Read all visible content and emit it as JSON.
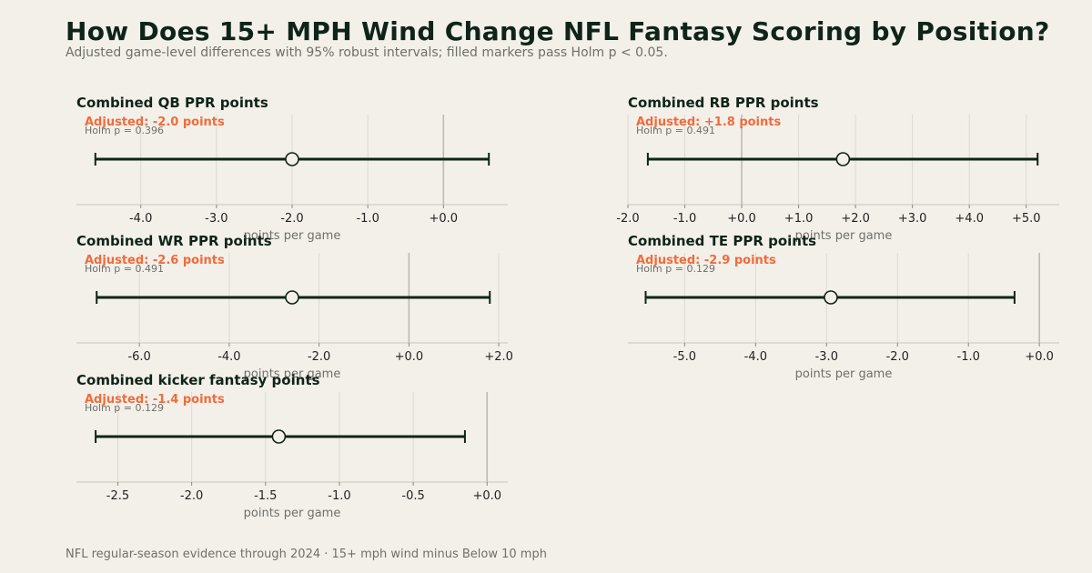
{
  "header": {
    "title": "How Does 15+ MPH Wind Change NFL Fantasy Scoring by Position?",
    "subtitle": "Adjusted game-level differences with 95% robust intervals; filled markers pass Holm p < 0.05."
  },
  "footer": {
    "text": "NFL regular-season evidence through 2024 · 15+ mph wind minus Below 10 mph"
  },
  "colors": {
    "line": "#0f2418",
    "marker_fill": "#f3f0ea",
    "annotation": "#f26b3a",
    "grid": "#dcd9d3",
    "zero_line": "#bdbab4"
  },
  "chart_data": [
    {
      "type": "scatter",
      "title": "Combined QB PPR points",
      "adjusted_label": "Adjusted: -2.0 points",
      "holm_label": "Holm p = 0.396",
      "estimate": -2.0,
      "ci": [
        -4.6,
        0.6
      ],
      "significant": false,
      "xlim": [
        -4.85,
        0.85
      ],
      "ticks": [
        -4.0,
        -3.0,
        -2.0,
        -1.0,
        0.0
      ],
      "tick_labels": [
        "-4.0",
        "-3.0",
        "-2.0",
        "-1.0",
        "+0.0"
      ],
      "xlabel": "points per game"
    },
    {
      "type": "scatter",
      "title": "Combined RB PPR points",
      "adjusted_label": "Adjusted: +1.8 points",
      "holm_label": "Holm p = 0.491",
      "estimate": 1.78,
      "ci": [
        -1.65,
        5.2
      ],
      "significant": false,
      "xlim": [
        -2.0,
        5.58
      ],
      "ticks": [
        -2.0,
        -1.0,
        0.0,
        1.0,
        2.0,
        3.0,
        4.0,
        5.0
      ],
      "tick_labels": [
        "-2.0",
        "-1.0",
        "+0.0",
        "+1.0",
        "+2.0",
        "+3.0",
        "+4.0",
        "+5.0"
      ],
      "xlabel": "points per game"
    },
    {
      "type": "scatter",
      "title": "Combined WR PPR points",
      "adjusted_label": "Adjusted: -2.6 points",
      "holm_label": "Holm p = 0.491",
      "estimate": -2.6,
      "ci": [
        -6.95,
        1.8
      ],
      "significant": false,
      "xlim": [
        -7.4,
        2.2
      ],
      "ticks": [
        -6.0,
        -4.0,
        -2.0,
        0.0,
        2.0
      ],
      "tick_labels": [
        "-6.0",
        "-4.0",
        "-2.0",
        "+0.0",
        "+2.0"
      ],
      "xlabel": "points per game"
    },
    {
      "type": "scatter",
      "title": "Combined TE PPR points",
      "adjusted_label": "Adjusted: -2.9 points",
      "holm_label": "Holm p = 0.129",
      "estimate": -2.94,
      "ci": [
        -5.55,
        -0.35
      ],
      "significant": false,
      "xlim": [
        -5.8,
        0.28
      ],
      "ticks": [
        -5.0,
        -4.0,
        -3.0,
        -2.0,
        -1.0,
        0.0
      ],
      "tick_labels": [
        "-5.0",
        "-4.0",
        "-3.0",
        "-2.0",
        "-1.0",
        "+0.0"
      ],
      "xlabel": "points per game"
    },
    {
      "type": "scatter",
      "title": "Combined kicker fantasy points",
      "adjusted_label": "Adjusted: -1.4 points",
      "holm_label": "Holm p = 0.129",
      "estimate": -1.41,
      "ci": [
        -2.65,
        -0.15
      ],
      "significant": false,
      "xlim": [
        -2.78,
        0.14
      ],
      "ticks": [
        -2.5,
        -2.0,
        -1.5,
        -1.0,
        -0.5,
        0.0
      ],
      "tick_labels": [
        "-2.5",
        "-2.0",
        "-1.5",
        "-1.0",
        "-0.5",
        "+0.0"
      ],
      "xlabel": "points per game"
    }
  ]
}
